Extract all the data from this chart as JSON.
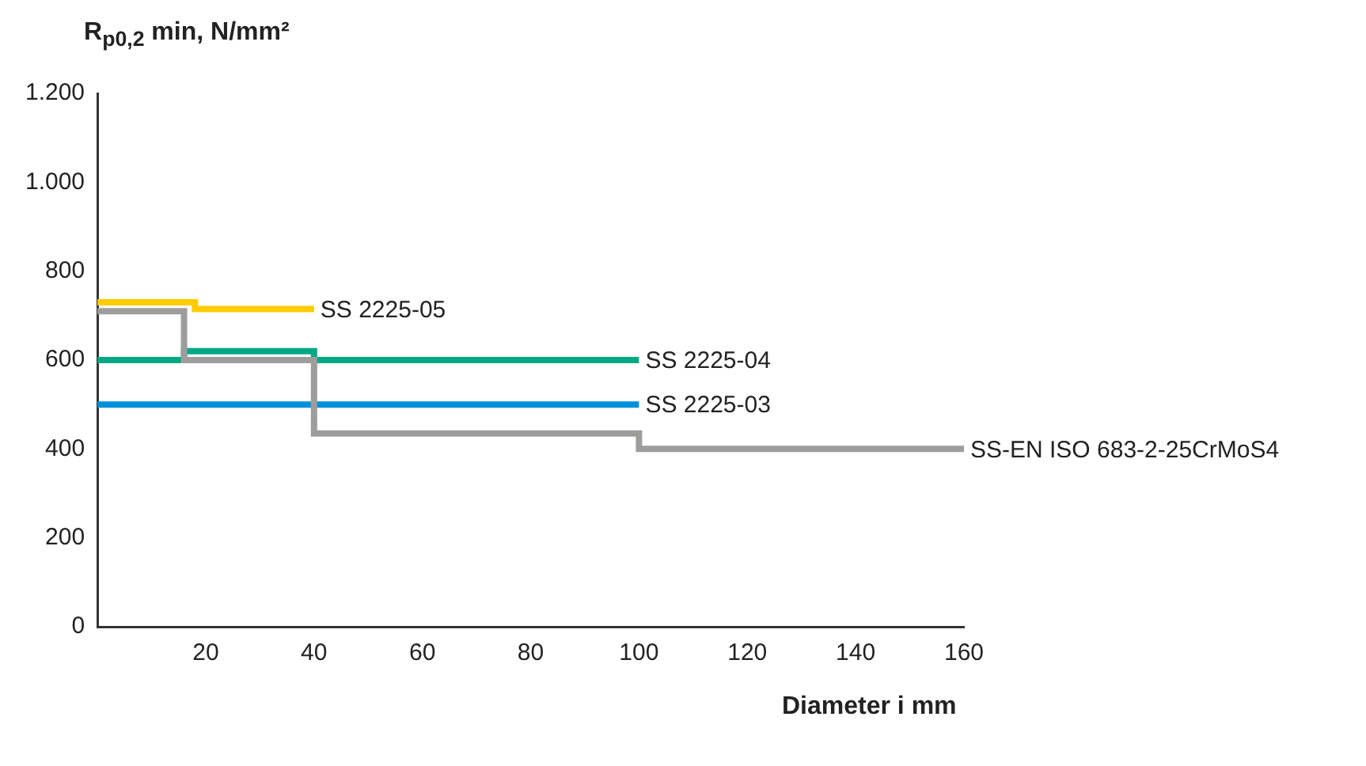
{
  "chart_data": {
    "type": "step",
    "ylabel": "R$_{p0,2}$ min, N/mm²",
    "xlabel": "Diameter i mm",
    "xlim": [
      0,
      160
    ],
    "xticks": [
      20,
      40,
      60,
      80,
      100,
      120,
      140,
      160
    ],
    "ylim": [
      0,
      1200
    ],
    "yticks": [
      0,
      200,
      400,
      600,
      800,
      {
        "value": 1000,
        "label": "1.000"
      },
      {
        "value": 1200,
        "label": "1.200"
      }
    ],
    "grid": false,
    "legend": false,
    "marker": "none",
    "line_style": "solid",
    "series": [
      {
        "name": "SS 2225-05",
        "color": "#ffcc00",
        "x": [
          0,
          18,
          40
        ],
        "values": [
          730,
          715,
          715
        ]
      },
      {
        "name": "SS-EN ISO 683-2-25CrMoS4",
        "color": "#9d9d9c",
        "x": [
          0,
          16,
          40,
          100,
          160
        ],
        "values": [
          710,
          600,
          435,
          400,
          400
        ]
      },
      {
        "name": "SS 2225-04",
        "color": "#00a984",
        "x": [
          0,
          16,
          40,
          100
        ],
        "values": [
          600,
          620,
          600,
          600
        ]
      },
      {
        "name": "SS 2225-03",
        "color": "#0090da",
        "x": [
          0,
          100
        ],
        "values": [
          500,
          500
        ]
      }
    ]
  }
}
